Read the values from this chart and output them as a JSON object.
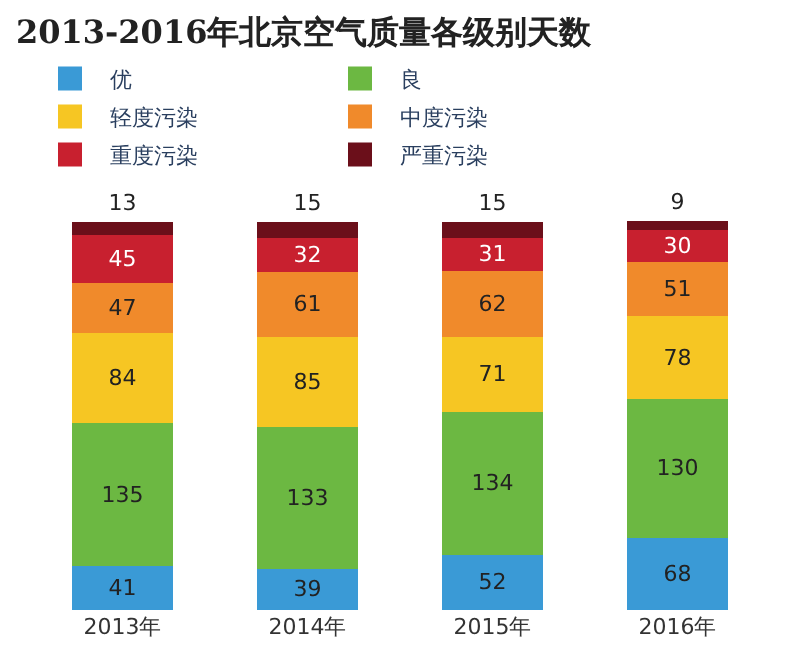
{
  "chart_data": {
    "type": "bar",
    "title": "2013-2016年北京空气质量各级别天数",
    "stacked": true,
    "data_labels": true,
    "legend": "top",
    "categories": [
      "2013年",
      "2014年",
      "2015年",
      "2016年"
    ],
    "series": [
      {
        "name": "优",
        "color": "#3a9ad6",
        "values": [
          41,
          39,
          52,
          68
        ]
      },
      {
        "name": "良",
        "color": "#6cb842",
        "values": [
          135,
          133,
          134,
          130
        ]
      },
      {
        "name": "轻度污染",
        "color": "#f6c623",
        "values": [
          84,
          85,
          71,
          78
        ]
      },
      {
        "name": "中度污染",
        "color": "#f08a2b",
        "values": [
          47,
          61,
          62,
          51
        ]
      },
      {
        "name": "重度污染",
        "color": "#c8202f",
        "values": [
          45,
          32,
          31,
          30
        ]
      },
      {
        "name": "严重污染",
        "color": "#6b0f1a",
        "values": [
          13,
          15,
          15,
          9
        ]
      }
    ]
  }
}
